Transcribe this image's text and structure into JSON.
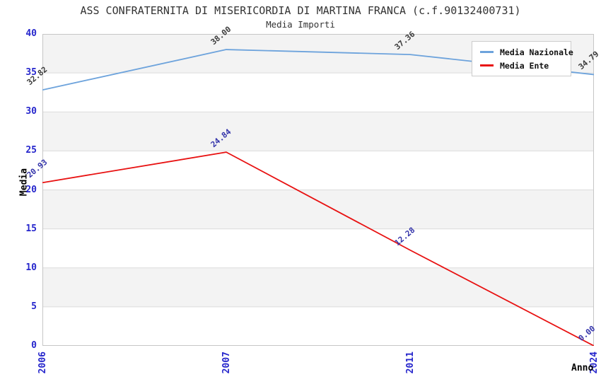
{
  "chart_data": {
    "type": "line",
    "title": "ASS CONFRATERNITA DI MISERICORDIA DI MARTINA FRANCA (c.f.90132400731)",
    "subtitle": "Media Importi",
    "xlabel": "Anno",
    "ylabel": "Media",
    "categories": [
      "2006",
      "2007",
      "2011",
      "2024"
    ],
    "series": [
      {
        "name": "Media Nazionale",
        "color": "#6da3dc",
        "label_color": "#3c3c3c",
        "values": [
          32.82,
          38.0,
          37.36,
          34.79
        ],
        "point_labels": [
          "32.82",
          "38.00",
          "37.36",
          "34.79"
        ]
      },
      {
        "name": "Media Ente",
        "color": "#e81111",
        "label_color": "#3333aa",
        "values": [
          20.93,
          24.84,
          12.28,
          0.0
        ],
        "point_labels": [
          "20.93",
          "24.84",
          "12.28",
          "0.00"
        ]
      }
    ],
    "ylim": [
      0,
      40
    ],
    "ytick_step": 5,
    "yticks": [
      "0",
      "5",
      "10",
      "15",
      "20",
      "25",
      "30",
      "35",
      "40"
    ],
    "legend_position": "top-right",
    "grid": true,
    "band_colors": [
      "#f3f3f3",
      "#ffffff"
    ],
    "gridline_color": "#dcdcdc",
    "plot_border_color": "#c6c6c6",
    "tick_label_color": "#2626cc"
  }
}
